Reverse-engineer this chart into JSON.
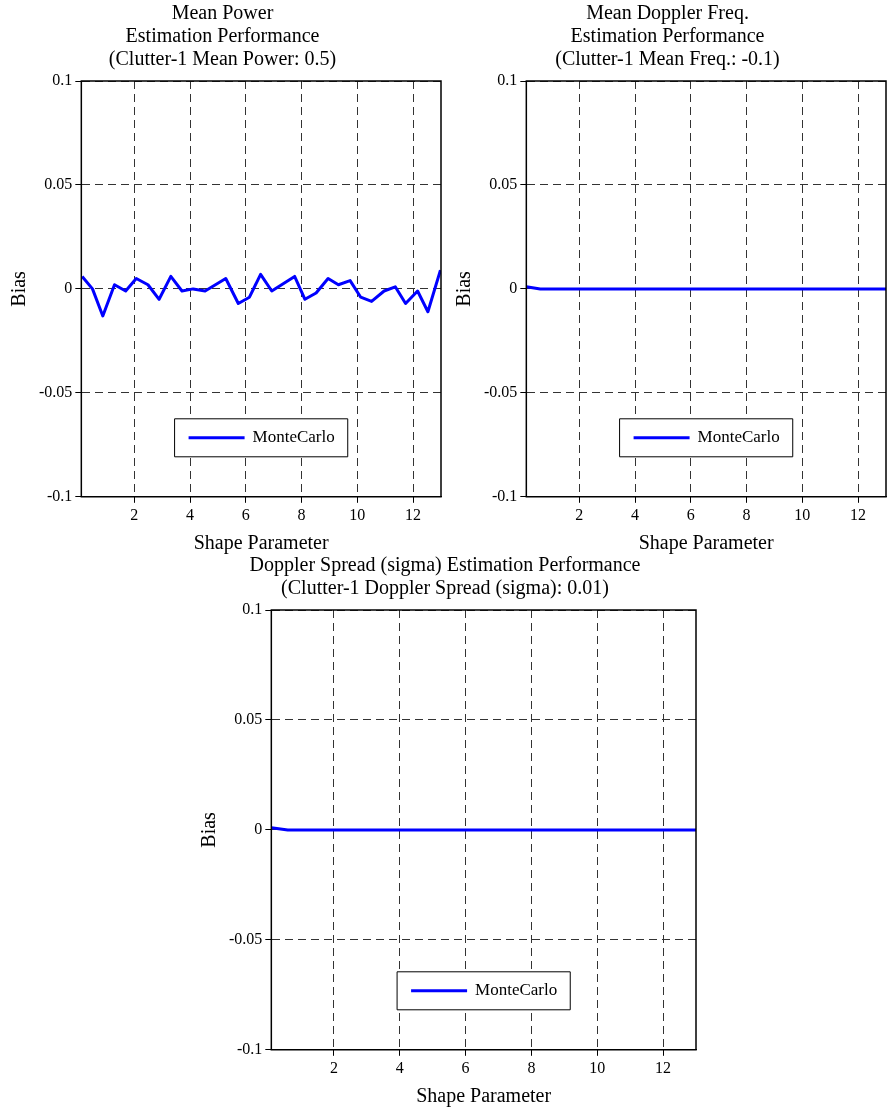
{
  "chart_data": [
    {
      "type": "line",
      "title": "Mean Power\nEstimation Performance\n(Clutter-1 Mean Power: 0.5)",
      "xlabel": "Shape Parameter",
      "ylabel": "Bias",
      "x": [
        0.13,
        0.5,
        0.87,
        1.29,
        1.69,
        2.07,
        2.49,
        2.89,
        3.31,
        3.71,
        4.11,
        4.54,
        5.28,
        5.73,
        6.13,
        6.53,
        6.93,
        7.75,
        8.12,
        8.52,
        8.95,
        9.32,
        9.74,
        10.12,
        10.51,
        10.96,
        11.36,
        11.73,
        12.16,
        12.53,
        12.98
      ],
      "series": [
        {
          "name": "MonteCarlo",
          "color": "#0000ff",
          "values": [
            0.006,
            0,
            -0.013,
            0.002,
            -0.001,
            0.005,
            0.002,
            -0.005,
            0.006,
            -0.001,
            0,
            -0.001,
            0.005,
            -0.007,
            -0.004,
            0.007,
            -0.001,
            0.006,
            -0.005,
            -0.002,
            0.005,
            0.002,
            0.004,
            -0.004,
            -0.006,
            -0.001,
            0.001,
            -0.007,
            -0.001,
            -0.011,
            0.009
          ]
        }
      ],
      "xlim": [
        0.1,
        13
      ],
      "ylim": [
        -0.1,
        0.1
      ],
      "xticks": [
        2,
        4,
        6,
        8,
        10,
        12
      ],
      "yticks": [
        -0.1,
        -0.05,
        0,
        0.05,
        0.1
      ],
      "grid": true,
      "legend": "bottom",
      "line_style": "solid"
    },
    {
      "type": "line",
      "title": "Mean Doppler Freq.\nEstimation Performance\n(Clutter-1 Mean Freq.: -0.1)",
      "xlabel": "Shape Parameter",
      "ylabel": "Bias",
      "x": [
        0.1,
        0.6,
        13
      ],
      "series": [
        {
          "name": "MonteCarlo",
          "color": "#0000ff",
          "values": [
            0.001,
            0,
            0
          ]
        }
      ],
      "xlim": [
        0.1,
        13
      ],
      "ylim": [
        -0.1,
        0.1
      ],
      "xticks": [
        2,
        4,
        6,
        8,
        10,
        12
      ],
      "yticks": [
        -0.1,
        -0.05,
        0,
        0.05,
        0.1
      ],
      "grid": true,
      "legend": "bottom",
      "line_style": "solid"
    },
    {
      "type": "line",
      "title": "Doppler Spread (sigma) Estimation Performance\n(Clutter-1 Doppler Spread (sigma): 0.01)",
      "xlabel": "Shape Parameter",
      "ylabel": "Bias",
      "x": [
        0.1,
        0.6,
        13
      ],
      "series": [
        {
          "name": "MonteCarlo",
          "color": "#0000ff",
          "values": [
            0.001,
            0,
            0
          ]
        }
      ],
      "xlim": [
        0.1,
        13
      ],
      "ylim": [
        -0.1,
        0.1
      ],
      "xticks": [
        2,
        4,
        6,
        8,
        10,
        12
      ],
      "yticks": [
        -0.1,
        -0.05,
        0,
        0.05,
        0.1
      ],
      "grid": true,
      "legend": "bottom",
      "line_style": "solid"
    }
  ]
}
